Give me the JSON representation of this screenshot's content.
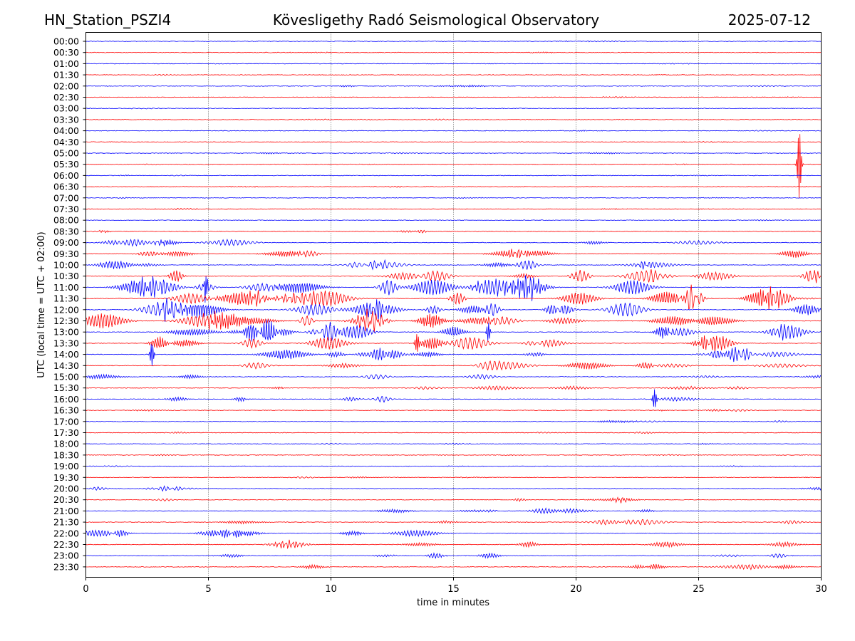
{
  "header": {
    "station": "HN_Station_PSZI4",
    "title": "Kövesligethy Radó Seismological Observatory",
    "date": "2025-07-12"
  },
  "chart_data": {
    "type": "line",
    "xlabel": "time in minutes",
    "ylabel": "UTC (local time = UTC + 02:00)",
    "xlim": [
      0,
      30
    ],
    "xticks": [
      0,
      5,
      10,
      15,
      20,
      25,
      30
    ],
    "vertical_gridlines": [
      5,
      10,
      15,
      20,
      25
    ],
    "grid": "vertical dotted",
    "legend": "none",
    "row_labels": [
      "00:00",
      "00:30",
      "01:00",
      "01:30",
      "02:00",
      "02:30",
      "03:00",
      "03:30",
      "04:00",
      "04:30",
      "05:00",
      "05:30",
      "06:00",
      "06:30",
      "07:00",
      "07:30",
      "08:00",
      "08:30",
      "09:00",
      "09:30",
      "10:00",
      "10:30",
      "11:00",
      "11:30",
      "12:00",
      "12:30",
      "13:00",
      "13:30",
      "14:00",
      "14:30",
      "15:00",
      "15:30",
      "16:00",
      "16:30",
      "17:00",
      "17:30",
      "18:00",
      "18:30",
      "19:00",
      "19:30",
      "20:00",
      "20:30",
      "21:00",
      "21:30",
      "22:00",
      "22:30",
      "23:00",
      "23:30"
    ],
    "colors": [
      "#0000ff",
      "#ff0000"
    ],
    "activity_level": [
      0.05,
      0.05,
      0.05,
      0.05,
      0.08,
      0.05,
      0.05,
      0.05,
      0.05,
      0.05,
      0.08,
      0.06,
      0.05,
      0.06,
      0.06,
      0.07,
      0.05,
      0.12,
      0.35,
      0.45,
      0.5,
      0.6,
      0.75,
      0.85,
      0.8,
      0.75,
      0.7,
      0.65,
      0.55,
      0.4,
      0.25,
      0.25,
      0.3,
      0.15,
      0.1,
      0.08,
      0.06,
      0.06,
      0.07,
      0.08,
      0.15,
      0.2,
      0.25,
      0.3,
      0.3,
      0.3,
      0.25,
      0.25
    ],
    "events": [
      {
        "row": "11:00",
        "minute": 4.9,
        "amplitude": 1.6
      },
      {
        "row": "05:30",
        "minute": 29.1,
        "amplitude": 4.5
      },
      {
        "row": "13:00",
        "minute": 16.4,
        "amplitude": 2.0
      },
      {
        "row": "13:30",
        "minute": 13.5,
        "amplitude": 1.6
      },
      {
        "row": "14:00",
        "minute": 2.7,
        "amplitude": 1.5
      },
      {
        "row": "16:00",
        "minute": 23.2,
        "amplitude": 1.2
      }
    ]
  }
}
